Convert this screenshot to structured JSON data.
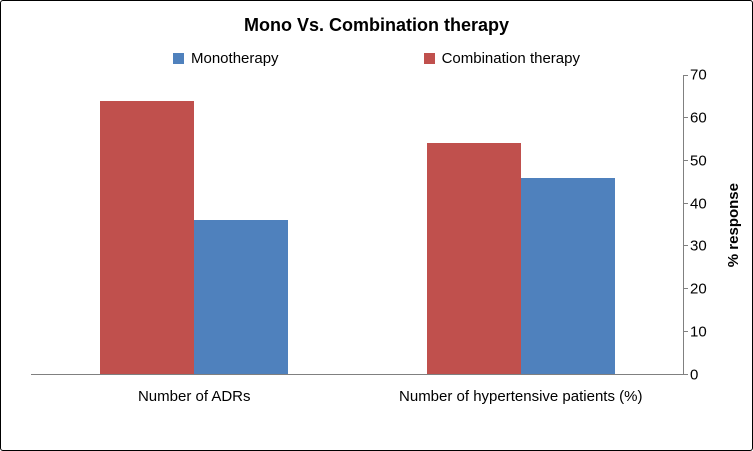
{
  "chart_data": {
    "type": "bar",
    "title": "Mono Vs. Combination therapy",
    "categories": [
      "Number of ADRs",
      "Number of hypertensive patients (%)"
    ],
    "series": [
      {
        "name": "Monotherapy",
        "color": "#4F81BD",
        "values": [
          36,
          46
        ]
      },
      {
        "name": "Combination therapy",
        "color": "#C0504D",
        "values": [
          64,
          54
        ]
      }
    ],
    "xlabel": "",
    "ylabel": "% response",
    "ylim": [
      0,
      70
    ],
    "ytick_step": 10,
    "yticks": [
      0,
      10,
      20,
      30,
      40,
      50,
      60,
      70
    ],
    "grid": false,
    "legend_position": "top",
    "yaxis_side": "right",
    "bar_draw_order": [
      1,
      0
    ],
    "axis_color": "#808080"
  }
}
